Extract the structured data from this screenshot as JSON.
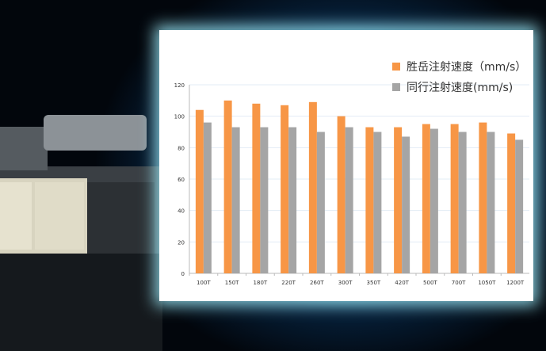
{
  "chart_data": {
    "type": "bar",
    "categories": [
      "100T",
      "150T",
      "180T",
      "220T",
      "260T",
      "300T",
      "350T",
      "420T",
      "500T",
      "700T",
      "1050T",
      "1200T"
    ],
    "series": [
      {
        "name": "胜岳注射速度（mm/s）",
        "color": "#f79646",
        "values": [
          104,
          110,
          108,
          107,
          109,
          100,
          93,
          93,
          95,
          95,
          96,
          89
        ]
      },
      {
        "name": "同行注射速度(mm/s)",
        "color": "#a5a5a5",
        "values": [
          96,
          93,
          93,
          93,
          90,
          93,
          90,
          87,
          92,
          90,
          90,
          85
        ]
      }
    ],
    "ylim": [
      0,
      120
    ],
    "yticks": [
      0,
      20,
      40,
      60,
      80,
      100,
      120
    ],
    "grid": true,
    "legend": "top-right"
  }
}
